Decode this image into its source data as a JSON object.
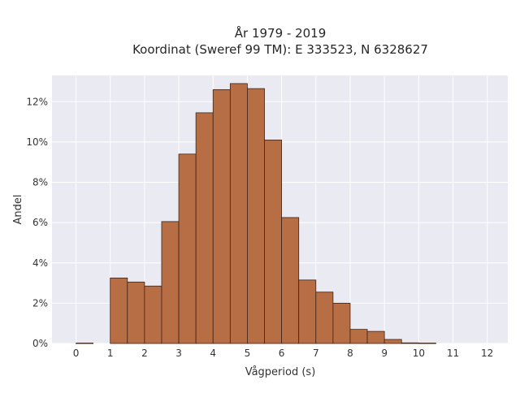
{
  "chart_data": {
    "type": "bar",
    "title_line1": "År 1979 - 2019",
    "title_line2": "Koordinat (Sweref 99 TM): E 333523, N 6328627",
    "xlabel": "Vågperiod (s)",
    "ylabel": "Andel",
    "bin_width": 0.5,
    "x": [
      0,
      0.5,
      1,
      1.5,
      2,
      2.5,
      3,
      3.5,
      4,
      4.5,
      5,
      5.5,
      6,
      6.5,
      7,
      7.5,
      8,
      8.5,
      9,
      9.5,
      10,
      10.5,
      11,
      11.5
    ],
    "values": [
      0.02,
      0,
      3.25,
      3.05,
      2.85,
      6.05,
      9.4,
      11.45,
      12.6,
      12.9,
      12.65,
      10.1,
      6.25,
      3.15,
      2.55,
      2.0,
      0.7,
      0.6,
      0.2,
      0.03,
      0.02,
      0,
      0,
      0
    ],
    "xlim": [
      -0.7,
      12.6
    ],
    "ylim": [
      0,
      13.3
    ],
    "x_ticks": [
      0,
      1,
      2,
      3,
      4,
      5,
      6,
      7,
      8,
      9,
      10,
      11,
      12
    ],
    "x_tick_labels": [
      "0",
      "1",
      "2",
      "3",
      "4",
      "5",
      "6",
      "7",
      "8",
      "9",
      "10",
      "11",
      "12"
    ],
    "y_ticks": [
      0,
      2,
      4,
      6,
      8,
      10,
      12
    ],
    "y_tick_labels": [
      "0%",
      "2%",
      "4%",
      "6%",
      "8%",
      "10%",
      "12%"
    ],
    "grid": true,
    "colors": {
      "bar_fill": "#b86e45",
      "bar_edge": "#3b2418",
      "plot_background": "#eaeaf2",
      "grid": "#ffffff"
    }
  }
}
